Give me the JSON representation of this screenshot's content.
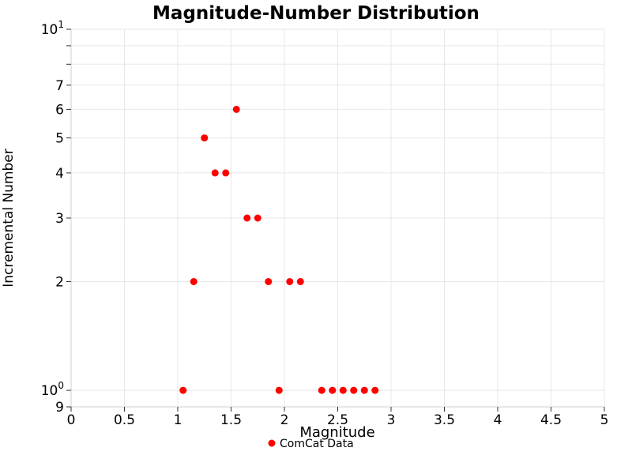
{
  "chart_data": {
    "type": "scatter",
    "title": "Magnitude-Number Distribution",
    "xlabel": "Magnitude",
    "ylabel": "Incremental Number",
    "xlim": [
      0,
      5
    ],
    "ylim": [
      0.9,
      10
    ],
    "x_scale": "linear",
    "y_scale": "log",
    "grid": true,
    "x_ticks": [
      {
        "v": 0,
        "label": "0"
      },
      {
        "v": 0.5,
        "label": "0.5"
      },
      {
        "v": 1,
        "label": "1"
      },
      {
        "v": 1.5,
        "label": "1.5"
      },
      {
        "v": 2,
        "label": "2"
      },
      {
        "v": 2.5,
        "label": "2.5"
      },
      {
        "v": 3,
        "label": "3"
      },
      {
        "v": 3.5,
        "label": "3.5"
      },
      {
        "v": 4,
        "label": "4"
      },
      {
        "v": 4.5,
        "label": "4.5"
      },
      {
        "v": 5,
        "label": "5"
      }
    ],
    "y_ticks": [
      {
        "v": 10,
        "base": "10",
        "exp": "1"
      },
      {
        "v": 9,
        "label": ""
      },
      {
        "v": 8,
        "label": ""
      },
      {
        "v": 7,
        "label": "7"
      },
      {
        "v": 6,
        "label": "6"
      },
      {
        "v": 5,
        "label": "5"
      },
      {
        "v": 4,
        "label": "4"
      },
      {
        "v": 3,
        "label": "3"
      },
      {
        "v": 2,
        "label": "2"
      },
      {
        "v": 1,
        "base": "10",
        "exp": "0"
      },
      {
        "v": 0.9,
        "label": "9"
      }
    ],
    "y_gridlines": [
      0.9,
      1,
      2,
      3,
      4,
      5,
      6,
      7,
      8,
      9,
      10
    ],
    "series": [
      {
        "name": "ComCat Data",
        "color": "#ff0000",
        "marker": "circle",
        "points": [
          [
            1.05,
            1
          ],
          [
            1.15,
            2
          ],
          [
            1.25,
            5
          ],
          [
            1.35,
            4
          ],
          [
            1.45,
            4
          ],
          [
            1.55,
            6
          ],
          [
            1.65,
            3
          ],
          [
            1.75,
            3
          ],
          [
            1.85,
            2
          ],
          [
            1.95,
            1
          ],
          [
            2.05,
            2
          ],
          [
            2.15,
            2
          ],
          [
            2.35,
            1
          ],
          [
            2.45,
            1
          ],
          [
            2.55,
            1
          ],
          [
            2.65,
            1
          ],
          [
            2.75,
            1
          ],
          [
            2.85,
            1
          ]
        ]
      }
    ],
    "legend_position": "bottom-center",
    "colors": {
      "grid": "#e7e7e7",
      "axis": "#cfcfcf",
      "tick": "#333333",
      "marker": "#ff0000",
      "background": "#ffffff",
      "text": "#000000"
    }
  }
}
